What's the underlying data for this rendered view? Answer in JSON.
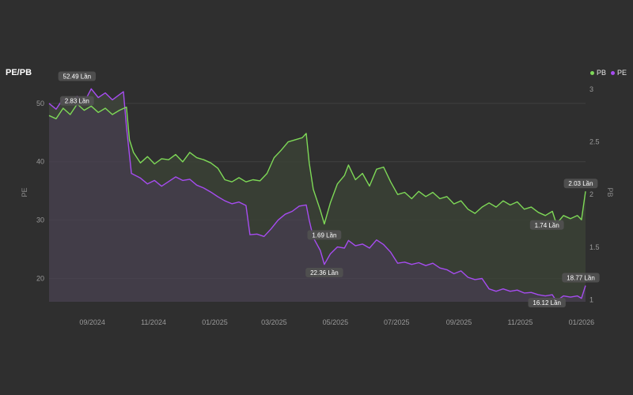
{
  "title": "PE/PB",
  "legend": [
    {
      "name": "PB",
      "color": "#7ed957"
    },
    {
      "name": "PE",
      "color": "#a64cf0"
    }
  ],
  "colors": {
    "background": "#2f2f2f",
    "grid": "#3f3f3f",
    "pb": "#7ed957",
    "pe": "#a64cf0"
  },
  "chart_data": {
    "type": "line",
    "x_ticks": [
      "09/2024",
      "11/2024",
      "01/2025",
      "03/2025",
      "05/2025",
      "07/2025",
      "09/2025",
      "11/2025",
      "01/2026"
    ],
    "y_left": {
      "label": "PE",
      "ticks": [
        20,
        30,
        40,
        50
      ],
      "range": [
        16,
        53.5
      ]
    },
    "y_right": {
      "label": "PB",
      "ticks": [
        1,
        1.5,
        2,
        2.5,
        3
      ],
      "range": [
        0.98,
        3.06
      ]
    },
    "x_range": [
      "2024-07-20",
      "2026-01-05"
    ],
    "grid": true,
    "legend_position": "top-right",
    "series": [
      {
        "name": "PB",
        "axis": "right",
        "color": "#7ed957",
        "points": [
          [
            "2024-07-20",
            2.75
          ],
          [
            "2024-07-27",
            2.72
          ],
          [
            "2024-08-03",
            2.82
          ],
          [
            "2024-08-10",
            2.76
          ],
          [
            "2024-08-17",
            2.86
          ],
          [
            "2024-08-24",
            2.8
          ],
          [
            "2024-08-31",
            2.84
          ],
          [
            "2024-09-07",
            2.78
          ],
          [
            "2024-09-14",
            2.82
          ],
          [
            "2024-09-21",
            2.76
          ],
          [
            "2024-09-28",
            2.8
          ],
          [
            "2024-10-05",
            2.83
          ],
          [
            "2024-10-08",
            2.52
          ],
          [
            "2024-10-12",
            2.4
          ],
          [
            "2024-10-19",
            2.3
          ],
          [
            "2024-10-26",
            2.36
          ],
          [
            "2024-11-02",
            2.29
          ],
          [
            "2024-11-09",
            2.34
          ],
          [
            "2024-11-16",
            2.33
          ],
          [
            "2024-11-23",
            2.38
          ],
          [
            "2024-11-30",
            2.31
          ],
          [
            "2024-12-07",
            2.4
          ],
          [
            "2024-12-14",
            2.35
          ],
          [
            "2024-12-21",
            2.33
          ],
          [
            "2024-12-28",
            2.3
          ],
          [
            "2025-01-04",
            2.25
          ],
          [
            "2025-01-11",
            2.14
          ],
          [
            "2025-01-18",
            2.12
          ],
          [
            "2025-01-25",
            2.16
          ],
          [
            "2025-02-01",
            2.12
          ],
          [
            "2025-02-08",
            2.14
          ],
          [
            "2025-02-15",
            2.13
          ],
          [
            "2025-02-22",
            2.2
          ],
          [
            "2025-03-01",
            2.35
          ],
          [
            "2025-03-08",
            2.42
          ],
          [
            "2025-03-15",
            2.5
          ],
          [
            "2025-03-22",
            2.52
          ],
          [
            "2025-03-29",
            2.54
          ],
          [
            "2025-04-02",
            2.58
          ],
          [
            "2025-04-05",
            2.3
          ],
          [
            "2025-04-09",
            2.05
          ],
          [
            "2025-04-16",
            1.85
          ],
          [
            "2025-04-20",
            1.72
          ],
          [
            "2025-04-26",
            1.92
          ],
          [
            "2025-05-03",
            2.1
          ],
          [
            "2025-05-10",
            2.18
          ],
          [
            "2025-05-14",
            2.28
          ],
          [
            "2025-05-21",
            2.14
          ],
          [
            "2025-05-28",
            2.2
          ],
          [
            "2025-06-04",
            2.08
          ],
          [
            "2025-06-11",
            2.24
          ],
          [
            "2025-06-18",
            2.26
          ],
          [
            "2025-06-25",
            2.12
          ],
          [
            "2025-07-02",
            2.0
          ],
          [
            "2025-07-09",
            2.02
          ],
          [
            "2025-07-16",
            1.96
          ],
          [
            "2025-07-23",
            2.03
          ],
          [
            "2025-07-30",
            1.98
          ],
          [
            "2025-08-06",
            2.02
          ],
          [
            "2025-08-13",
            1.96
          ],
          [
            "2025-08-20",
            1.98
          ],
          [
            "2025-08-27",
            1.91
          ],
          [
            "2025-09-03",
            1.94
          ],
          [
            "2025-09-10",
            1.86
          ],
          [
            "2025-09-17",
            1.82
          ],
          [
            "2025-09-24",
            1.88
          ],
          [
            "2025-10-01",
            1.92
          ],
          [
            "2025-10-08",
            1.88
          ],
          [
            "2025-10-15",
            1.94
          ],
          [
            "2025-10-22",
            1.9
          ],
          [
            "2025-10-29",
            1.93
          ],
          [
            "2025-11-05",
            1.86
          ],
          [
            "2025-11-12",
            1.88
          ],
          [
            "2025-11-19",
            1.83
          ],
          [
            "2025-11-26",
            1.8
          ],
          [
            "2025-12-03",
            1.84
          ],
          [
            "2025-12-07",
            1.72
          ],
          [
            "2025-12-14",
            1.8
          ],
          [
            "2025-12-21",
            1.77
          ],
          [
            "2025-12-28",
            1.8
          ],
          [
            "2026-01-01",
            1.76
          ],
          [
            "2026-01-05",
            2.03
          ]
        ]
      },
      {
        "name": "PE",
        "axis": "left",
        "color": "#a64cf0",
        "points": [
          [
            "2024-07-20",
            50.0
          ],
          [
            "2024-07-27",
            49.0
          ],
          [
            "2024-08-03",
            50.8
          ],
          [
            "2024-08-10",
            50.0
          ],
          [
            "2024-08-17",
            51.2
          ],
          [
            "2024-08-24",
            50.2
          ],
          [
            "2024-08-31",
            52.5
          ],
          [
            "2024-09-07",
            51.0
          ],
          [
            "2024-09-14",
            51.8
          ],
          [
            "2024-09-21",
            50.6
          ],
          [
            "2024-09-28",
            51.5
          ],
          [
            "2024-10-02",
            52.0
          ],
          [
            "2024-10-05",
            46.0
          ],
          [
            "2024-10-10",
            38.0
          ],
          [
            "2024-10-19",
            37.2
          ],
          [
            "2024-10-26",
            36.2
          ],
          [
            "2024-11-02",
            36.8
          ],
          [
            "2024-11-09",
            35.8
          ],
          [
            "2024-11-16",
            36.6
          ],
          [
            "2024-11-23",
            37.4
          ],
          [
            "2024-11-30",
            36.8
          ],
          [
            "2024-12-07",
            37.0
          ],
          [
            "2024-12-14",
            36.0
          ],
          [
            "2024-12-21",
            35.5
          ],
          [
            "2024-12-28",
            34.8
          ],
          [
            "2025-01-04",
            34.0
          ],
          [
            "2025-01-11",
            33.3
          ],
          [
            "2025-01-18",
            32.8
          ],
          [
            "2025-01-25",
            33.1
          ],
          [
            "2025-02-01",
            32.5
          ],
          [
            "2025-02-05",
            27.5
          ],
          [
            "2025-02-12",
            27.6
          ],
          [
            "2025-02-19",
            27.2
          ],
          [
            "2025-02-26",
            28.5
          ],
          [
            "2025-03-05",
            30.0
          ],
          [
            "2025-03-12",
            31.0
          ],
          [
            "2025-03-19",
            31.5
          ],
          [
            "2025-03-26",
            32.4
          ],
          [
            "2025-04-02",
            32.6
          ],
          [
            "2025-04-05",
            30.0
          ],
          [
            "2025-04-09",
            27.0
          ],
          [
            "2025-04-16",
            24.8
          ],
          [
            "2025-04-20",
            22.4
          ],
          [
            "2025-04-26",
            24.2
          ],
          [
            "2025-05-03",
            25.4
          ],
          [
            "2025-05-10",
            25.2
          ],
          [
            "2025-05-14",
            26.5
          ],
          [
            "2025-05-21",
            25.6
          ],
          [
            "2025-05-28",
            25.9
          ],
          [
            "2025-06-04",
            25.2
          ],
          [
            "2025-06-11",
            26.6
          ],
          [
            "2025-06-18",
            25.8
          ],
          [
            "2025-06-25",
            24.5
          ],
          [
            "2025-07-02",
            22.6
          ],
          [
            "2025-07-09",
            22.8
          ],
          [
            "2025-07-16",
            22.4
          ],
          [
            "2025-07-23",
            22.7
          ],
          [
            "2025-07-30",
            22.2
          ],
          [
            "2025-08-06",
            22.6
          ],
          [
            "2025-08-13",
            21.8
          ],
          [
            "2025-08-20",
            21.5
          ],
          [
            "2025-08-27",
            20.8
          ],
          [
            "2025-09-03",
            21.3
          ],
          [
            "2025-09-10",
            20.2
          ],
          [
            "2025-09-17",
            19.8
          ],
          [
            "2025-09-24",
            20.0
          ],
          [
            "2025-10-01",
            18.2
          ],
          [
            "2025-10-08",
            17.8
          ],
          [
            "2025-10-15",
            18.2
          ],
          [
            "2025-10-22",
            17.8
          ],
          [
            "2025-10-29",
            18.0
          ],
          [
            "2025-11-05",
            17.5
          ],
          [
            "2025-11-12",
            17.6
          ],
          [
            "2025-11-19",
            17.2
          ],
          [
            "2025-11-26",
            17.0
          ],
          [
            "2025-12-03",
            17.2
          ],
          [
            "2025-12-07",
            16.12
          ],
          [
            "2025-12-14",
            17.0
          ],
          [
            "2025-12-21",
            16.8
          ],
          [
            "2025-12-28",
            17.0
          ],
          [
            "2026-01-01",
            16.6
          ],
          [
            "2026-01-05",
            18.77
          ]
        ]
      }
    ],
    "annotations": [
      {
        "text": "52.49 Lần",
        "series": "PE",
        "x": "2024-08-31",
        "y": 52.49
      },
      {
        "text": "2.83 Lần",
        "series": "PB",
        "x": "2024-08-31",
        "y": 2.83
      },
      {
        "text": "1.69 Lần",
        "series": "PB",
        "x": "2025-04-20",
        "y": 1.69
      },
      {
        "text": "22.36 Lần",
        "series": "PE",
        "x": "2025-04-20",
        "y": 22.36
      },
      {
        "text": "1.74 Lần",
        "series": "PB",
        "x": "2025-12-07",
        "y": 1.74
      },
      {
        "text": "16.12 Lần",
        "series": "PE",
        "x": "2025-12-07",
        "y": 16.12
      },
      {
        "text": "2.03 Lần",
        "series": "PB",
        "x": "2026-01-05",
        "y": 2.03
      },
      {
        "text": "18.77 Lần",
        "series": "PE",
        "x": "2026-01-05",
        "y": 18.77
      }
    ]
  }
}
